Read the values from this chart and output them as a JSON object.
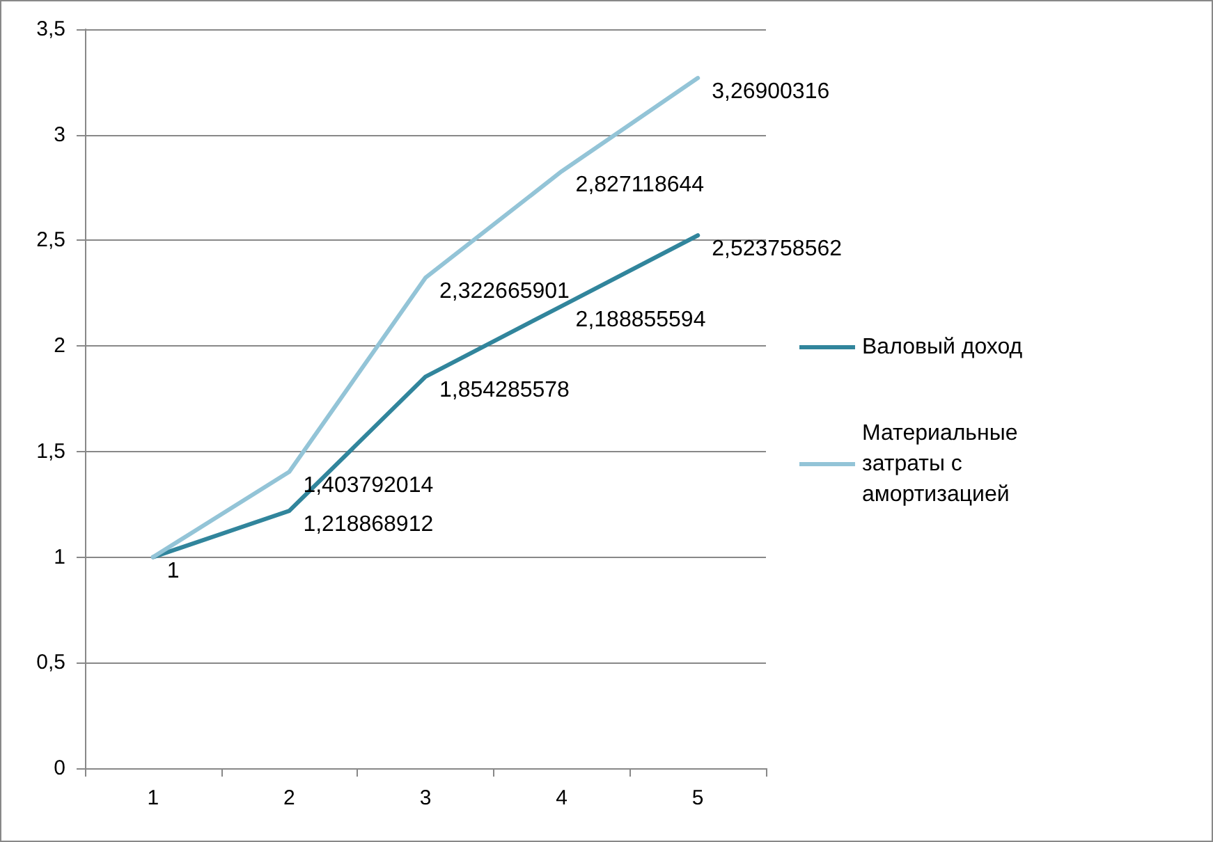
{
  "chart_data": {
    "type": "line",
    "categories": [
      "1",
      "2",
      "3",
      "4",
      "5"
    ],
    "series": [
      {
        "name": "Валовый доход",
        "color": "#31859c",
        "values": [
          1,
          1.218868912,
          1.854285578,
          2.188855594,
          2.523758562
        ],
        "value_labels": [
          "1",
          "1,218868912",
          "1,854285578",
          "2,188855594",
          "2,523758562"
        ]
      },
      {
        "name": "Материальные затраты с амортизацией",
        "color": "#93c4d7",
        "values": [
          1,
          1.403792014,
          2.322665901,
          2.827118644,
          3.26900316
        ],
        "value_labels": [
          null,
          "1,403792014",
          "2,322665901",
          "2,827118644",
          "3,26900316"
        ]
      }
    ],
    "ylim": [
      0,
      3.5
    ],
    "yticks": [
      0,
      {
        "value": 0.5,
        "label": "0,5"
      },
      1,
      {
        "value": 1.5,
        "label": "1,5"
      },
      2,
      {
        "value": 2.5,
        "label": "2,5"
      },
      3,
      {
        "value": 3.5,
        "label": "3,5"
      }
    ],
    "grid": "y",
    "legend": "right",
    "marker": "none",
    "line_style": "solid"
  }
}
